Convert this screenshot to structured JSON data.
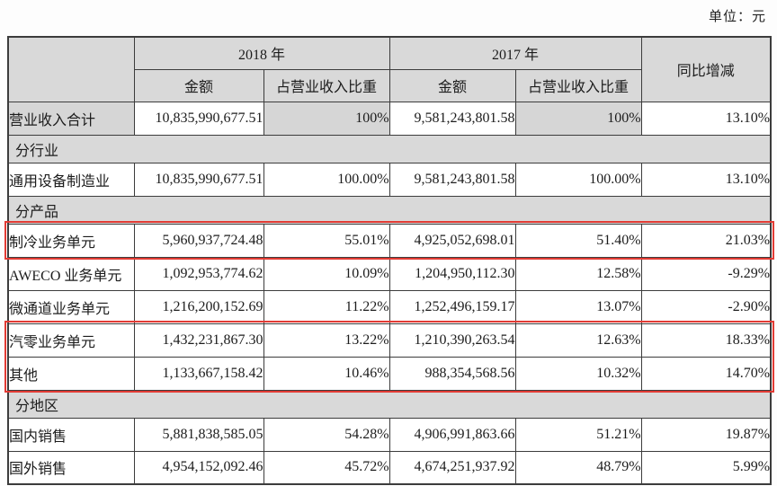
{
  "unit_label": "单位：元",
  "table": {
    "header": {
      "y2018": "2018 年",
      "y2017": "2017 年",
      "amount": "金额",
      "share": "占营业收入比重",
      "yoy": "同比增减"
    },
    "rows": [
      {
        "type": "data",
        "label": "营业收入合计",
        "a2018": "10,835,990,677.51",
        "p2018": "100%",
        "a2017": "9,581,243,801.58",
        "p2017": "100%",
        "yoy": "13.10%"
      },
      {
        "type": "section",
        "label": "分行业"
      },
      {
        "type": "data",
        "label": "通用设备制造业",
        "a2018": "10,835,990,677.51",
        "p2018": "100.00%",
        "a2017": "9,581,243,801.58",
        "p2017": "100.00%",
        "yoy": "13.10%"
      },
      {
        "type": "section",
        "label": "分产品"
      },
      {
        "type": "data",
        "label": "制冷业务单元",
        "a2018": "5,960,937,724.48",
        "p2018": "55.01%",
        "a2017": "4,925,052,698.01",
        "p2017": "51.40%",
        "yoy": "21.03%",
        "highlighted": true
      },
      {
        "type": "data",
        "label": "AWECO 业务单元",
        "a2018": "1,092,953,774.62",
        "p2018": "10.09%",
        "a2017": "1,204,950,112.30",
        "p2017": "12.58%",
        "yoy": "-9.29%"
      },
      {
        "type": "data",
        "label": "微通道业务单元",
        "a2018": "1,216,200,152.69",
        "p2018": "11.22%",
        "a2017": "1,252,496,159.17",
        "p2017": "13.07%",
        "yoy": "-2.90%"
      },
      {
        "type": "data",
        "label": "汽零业务单元",
        "a2018": "1,432,231,867.30",
        "p2018": "13.22%",
        "a2017": "1,210,390,263.54",
        "p2017": "12.63%",
        "yoy": "18.33%",
        "highlighted": true
      },
      {
        "type": "data",
        "label": "其他",
        "a2018": "1,133,667,158.42",
        "p2018": "10.46%",
        "a2017": "988,354,568.56",
        "p2017": "10.32%",
        "yoy": "14.70%",
        "highlighted": true
      },
      {
        "type": "section",
        "label": "分地区"
      },
      {
        "type": "data",
        "label": "国内销售",
        "a2018": "5,881,838,585.05",
        "p2018": "54.28%",
        "a2017": "4,906,991,863.66",
        "p2017": "51.21%",
        "yoy": "19.87%"
      },
      {
        "type": "data",
        "label": "国外销售",
        "a2018": "4,954,152,092.46",
        "p2018": "45.72%",
        "a2017": "4,674,251,937.92",
        "p2017": "48.79%",
        "yoy": "5.99%"
      }
    ]
  },
  "highlights": {
    "color": "#e23b34",
    "row_groups": [
      [
        4,
        4
      ],
      [
        7,
        8
      ]
    ]
  }
}
